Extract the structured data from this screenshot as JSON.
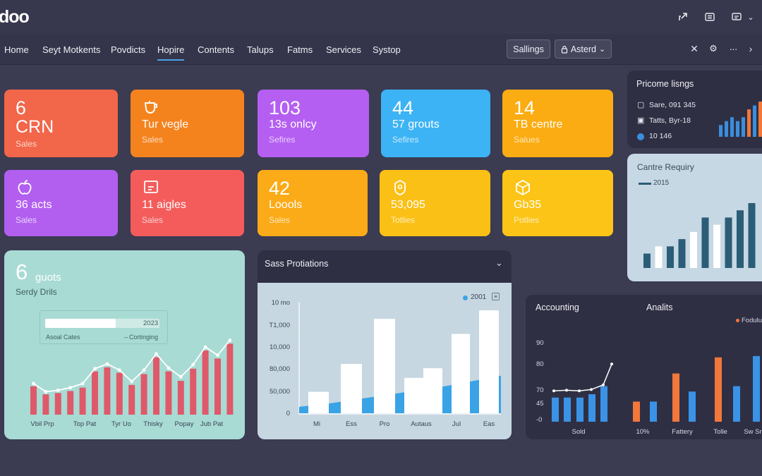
{
  "app": {
    "logo": "doo"
  },
  "topbar_icons": [
    "share-icon",
    "list-icon",
    "chat-icon"
  ],
  "nav": {
    "items": [
      "Home",
      "Seyt Motkents",
      "Povdicts",
      "Hopire",
      "Contents",
      "Talups",
      "Fatms",
      "Services",
      "Systop"
    ],
    "active_index": 3,
    "settings_button": "Sallings",
    "account_button": "Asterd"
  },
  "tiles": [
    {
      "num": "6",
      "text": "CRN",
      "sub": "Sales",
      "color": "#f2664a"
    },
    {
      "num": "",
      "text": "Tur vegle",
      "sub": "Sales",
      "color": "#f4831e"
    },
    {
      "num": "103",
      "text": "13s onlcy",
      "sub": "Sefires",
      "color": "#b45ff2"
    },
    {
      "num": "44",
      "text": "57 grouts",
      "sub": "Sefires",
      "color": "#3cb3f5"
    },
    {
      "num": "14",
      "text": "TB centre",
      "sub": "Salues",
      "color": "#fbac12"
    },
    {
      "num": "",
      "text": "36 acts",
      "sub": "Sales",
      "color": "#b25ff0"
    },
    {
      "num": "",
      "text": "11 aigles",
      "sub": "Sales",
      "color": "#f45c5c"
    },
    {
      "num": "42",
      "text": "Loools",
      "sub": "Sales",
      "color": "#fbab18"
    },
    {
      "num": "",
      "text": "53,095",
      "sub": "Totlies",
      "color": "#fbc015"
    },
    {
      "num": "",
      "text": "Gb35",
      "sub": "Potlies",
      "color": "#fbc416"
    }
  ],
  "pricing_panel": {
    "title": "Pricome lisngs",
    "rows": [
      "Sare, 091 345",
      "Tatts, Byr-18",
      "10 146"
    ],
    "bar_values": [
      3,
      4,
      5,
      4,
      5,
      7,
      8,
      9
    ],
    "bar_colors": [
      "#3b8edc",
      "#3b8edc",
      "#3b8edc",
      "#3b8edc",
      "#3b8edc",
      "#f2773a",
      "#3b8edc",
      "#f2773a"
    ]
  },
  "centre_panel": {
    "title": "Cantre Requiry",
    "legend": "2015",
    "bar_values": [
      2,
      3,
      3,
      4,
      5,
      7,
      6,
      7,
      8,
      9
    ],
    "bar_colors": [
      "#2b5d78",
      "#ffffff",
      "#2b5d78",
      "#2b5d78",
      "#ffffff",
      "#2b5d78",
      "#ffffff",
      "#2b5d78",
      "#2b5d78",
      "#2b5d78"
    ]
  },
  "goals_panel": {
    "number": "6",
    "title": "guots",
    "subtitle": "Serdy Drils",
    "progress_year": "2023",
    "progress_label": "Asoal Cates",
    "progress_legend": "Cortinging",
    "progress_fraction": 0.62,
    "bar_values": [
      4.2,
      3.0,
      3.2,
      3.5,
      4.0,
      6.4,
      7.0,
      6.2,
      4.4,
      6.0,
      8.5,
      6.4,
      5.0,
      6.8,
      9.5,
      8.3,
      10.5
    ],
    "line_values": [
      4.6,
      3.4,
      3.6,
      4.0,
      4.6,
      6.8,
      7.5,
      6.6,
      4.9,
      6.6,
      9.0,
      6.9,
      5.6,
      7.4,
      10.0,
      8.8,
      11.0
    ],
    "x_labels": [
      "Vbil Prp",
      "Top Pat",
      "Tyr Uo",
      "Thisky",
      "Popay",
      "Jub Pat"
    ]
  },
  "sales_panel": {
    "title": "Sass Protiations",
    "legend": "2001",
    "y_labels": [
      "10 mo",
      "T1,000",
      "10,000",
      "80,000",
      "50,000",
      "0"
    ],
    "x_labels": [
      "Mi",
      "Ess",
      "Pro",
      "Autaus",
      "Jul",
      "Eas"
    ],
    "bar_values": [
      2.0,
      4.6,
      8.8,
      3.3,
      4.2,
      7.4,
      9.6
    ],
    "area_values": [
      0.6,
      0.9,
      1.3,
      1.7,
      2.1,
      2.5,
      3.0,
      3.5
    ]
  },
  "accounting_panel": {
    "title": "Accounting",
    "title2": "Analits",
    "legend": "Fodulu",
    "y_labels": [
      "90",
      "80",
      "70",
      "45",
      "-0"
    ],
    "x_labels": [
      "Sold",
      "10%",
      "Fattery",
      "Tolle",
      "Sw Sr"
    ],
    "bars": [
      {
        "v": 3.6,
        "c": "#3a93e6"
      },
      {
        "v": 3.6,
        "c": "#3a93e6"
      },
      {
        "v": 3.6,
        "c": "#3a93e6"
      },
      {
        "v": 4.1,
        "c": "#3a93e6"
      },
      {
        "v": 5.3,
        "c": "#3a93e6"
      },
      {
        "v": 3.0,
        "c": "#f2773a"
      },
      {
        "v": 3.0,
        "c": "#3a93e6"
      },
      {
        "v": 7.2,
        "c": "#f2773a"
      },
      {
        "v": 4.5,
        "c": "#3a93e6"
      },
      {
        "v": 9.6,
        "c": "#f2773a"
      },
      {
        "v": 5.3,
        "c": "#3a93e6"
      },
      {
        "v": 9.8,
        "c": "#3a93e6"
      }
    ],
    "line_values": [
      4.6,
      4.7,
      4.6,
      4.8,
      5.5,
      8.6
    ]
  }
}
